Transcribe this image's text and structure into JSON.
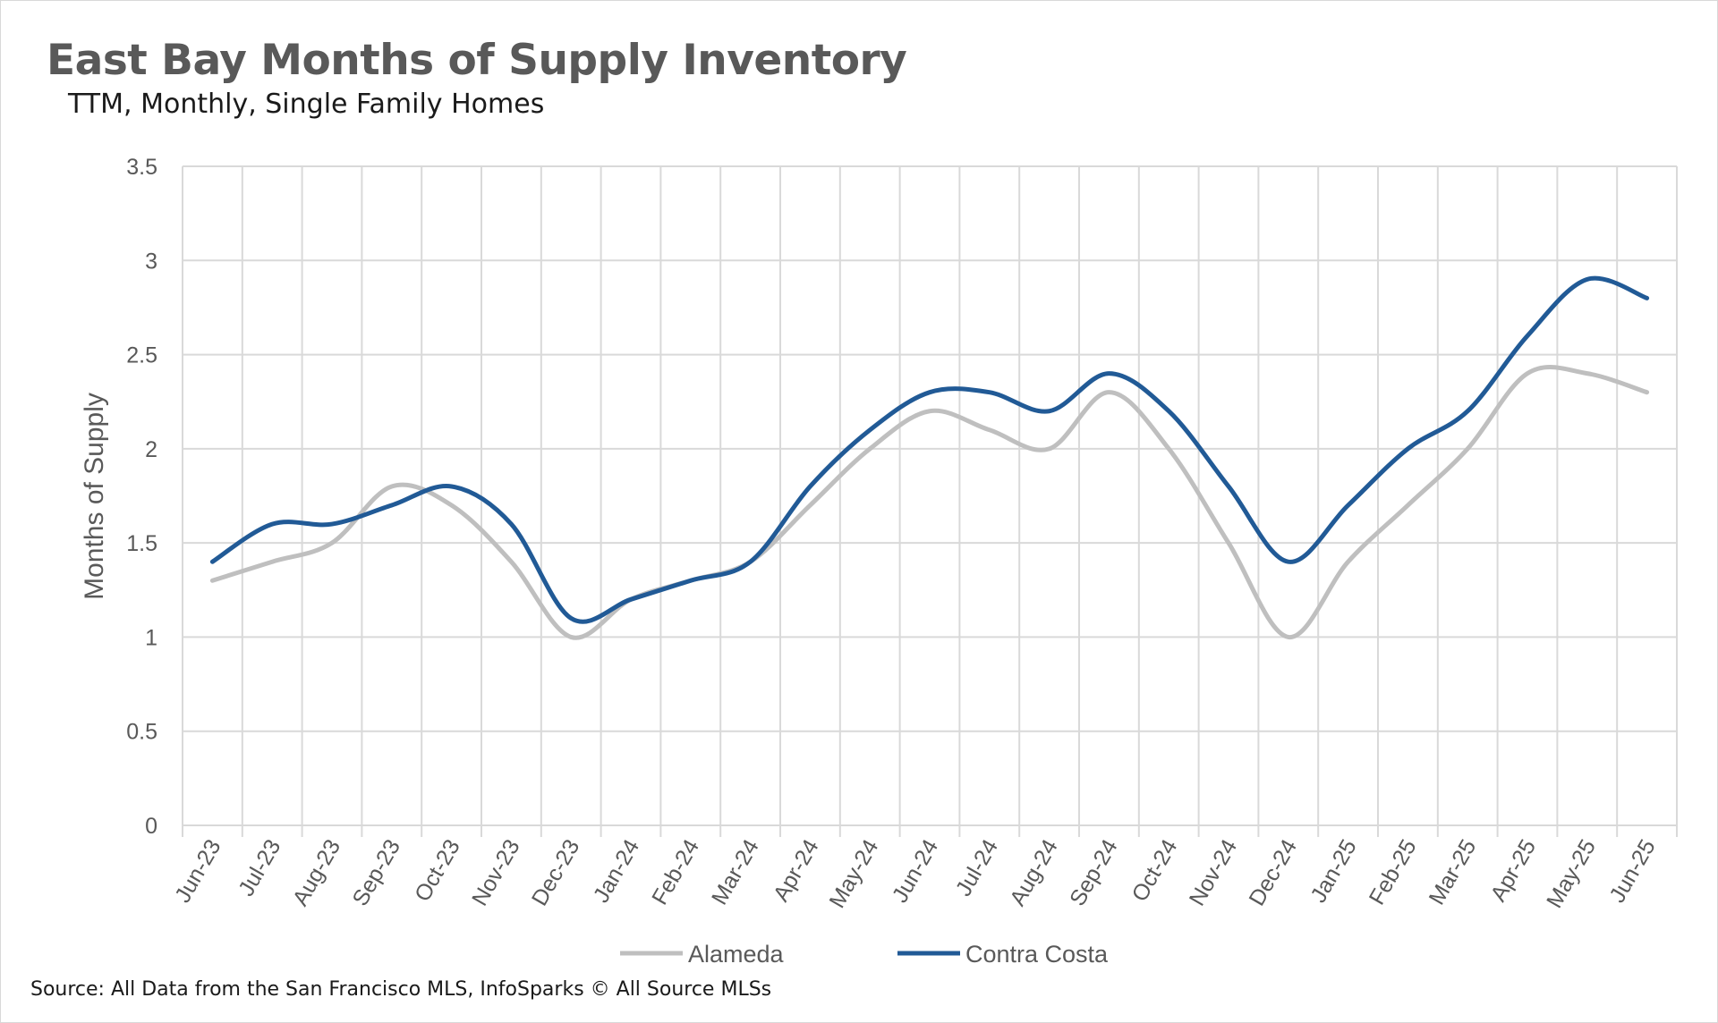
{
  "title": "East Bay Months of Supply Inventory",
  "subtitle": "TTM, Monthly, Single Family Homes",
  "source": "Source: All Data from the San Francisco MLS, InfoSparks © All Source MLSs",
  "colors": {
    "alameda": "#bfbfbf",
    "contra_costa": "#215a96",
    "grid": "#d9d9d9"
  },
  "chart_data": {
    "type": "line",
    "title": "East Bay Months of Supply Inventory",
    "subtitle": "TTM, Monthly, Single Family Homes",
    "xlabel": "",
    "ylabel": "Months of Supply",
    "ylim": [
      0,
      3.5
    ],
    "yticks": [
      "0",
      "0.5",
      "1",
      "1.5",
      "2",
      "2.5",
      "3",
      "3.5"
    ],
    "grid": true,
    "legend": "bottom",
    "categories": [
      "Jun-23",
      "Jul-23",
      "Aug-23",
      "Sep-23",
      "Oct-23",
      "Nov-23",
      "Dec-23",
      "Jan-24",
      "Feb-24",
      "Mar-24",
      "Apr-24",
      "May-24",
      "Jun-24",
      "Jul-24",
      "Aug-24",
      "Sep-24",
      "Oct-24",
      "Nov-24",
      "Dec-24",
      "Jan-25",
      "Feb-25",
      "Mar-25",
      "Apr-25",
      "May-25",
      "Jun-25"
    ],
    "series": [
      {
        "name": "Alameda",
        "color": "#bfbfbf",
        "values": [
          1.3,
          1.4,
          1.5,
          1.8,
          1.7,
          1.4,
          1.0,
          1.2,
          1.3,
          1.4,
          1.7,
          2.0,
          2.2,
          2.1,
          2.0,
          2.3,
          2.0,
          1.5,
          1.0,
          1.4,
          1.7,
          2.0,
          2.4,
          2.4,
          2.3
        ]
      },
      {
        "name": "Contra Costa",
        "color": "#215a96",
        "values": [
          1.4,
          1.6,
          1.6,
          1.7,
          1.8,
          1.6,
          1.1,
          1.2,
          1.3,
          1.4,
          1.8,
          2.1,
          2.3,
          2.3,
          2.2,
          2.4,
          2.2,
          1.8,
          1.4,
          1.7,
          2.0,
          2.2,
          2.6,
          2.9,
          2.8
        ]
      }
    ]
  }
}
